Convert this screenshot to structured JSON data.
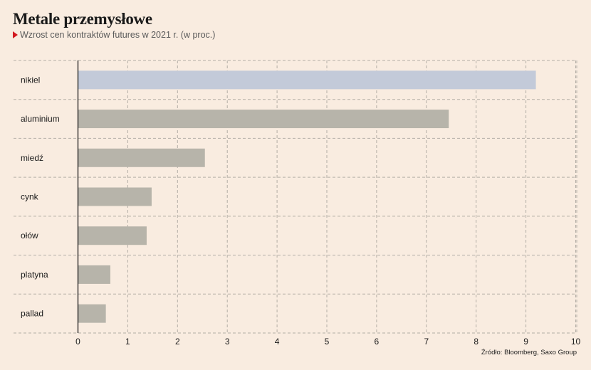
{
  "header": {
    "title": "Metale przemysłowe",
    "subtitle": "Wzrost cen kontraktów futures w 2021 r. (w proc.)"
  },
  "source": "Źródło: Bloomberg, Saxo Group",
  "colors": {
    "background": "#f9ece0",
    "highlight_bar": "#c3cad9",
    "bar": "#b7b4aa",
    "accent": "#d2181f",
    "grid": "#b4aea6"
  },
  "chart_data": {
    "type": "bar",
    "orientation": "horizontal",
    "title": "Metale przemysłowe",
    "subtitle": "Wzrost cen kontraktów futures w 2021 r. (w proc.)",
    "categories": [
      "nikiel",
      "aluminium",
      "miedź",
      "cynk",
      "ołów",
      "platyna",
      "pallad"
    ],
    "values": [
      9.2,
      7.45,
      2.55,
      1.48,
      1.38,
      0.65,
      0.56
    ],
    "highlight_index": 0,
    "xlim": [
      0,
      10
    ],
    "xticks": [
      "0",
      "1",
      "2",
      "3",
      "4",
      "5",
      "6",
      "7",
      "8",
      "9",
      "10"
    ],
    "grid": true,
    "xlabel": "",
    "ylabel": ""
  }
}
